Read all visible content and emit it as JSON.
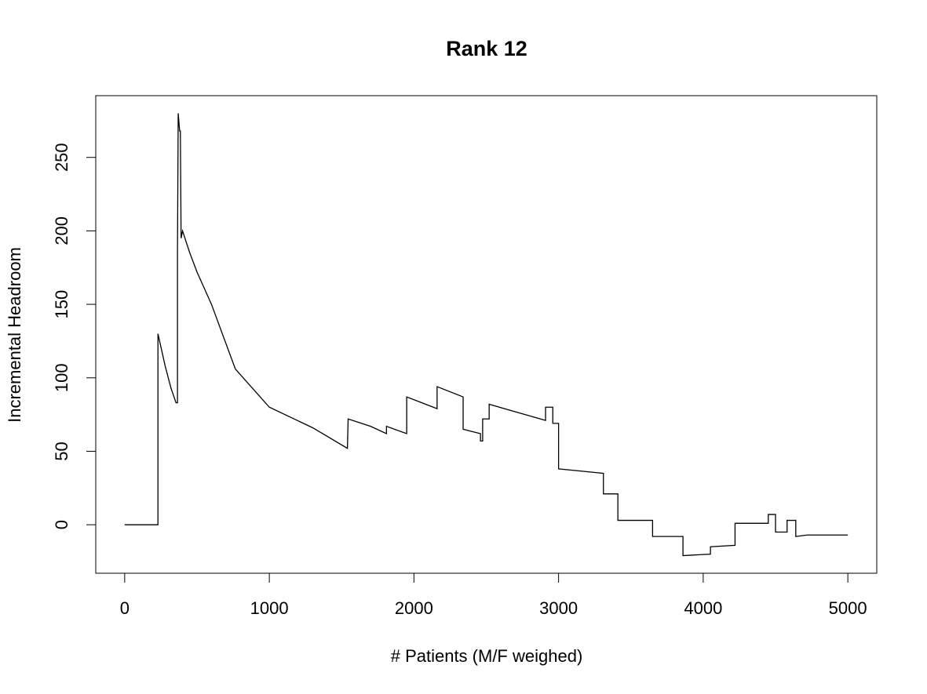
{
  "chart_data": {
    "type": "line",
    "title": "Rank 12",
    "x_label": "# Patients (M/F weighed)",
    "y_label": "Incremental Headroom",
    "color": "#000000",
    "xlim": [
      -200,
      5200
    ],
    "ylim": [
      -33,
      292
    ],
    "xticks": [
      0,
      1000,
      2000,
      3000,
      4000,
      5000
    ],
    "yticks": [
      0,
      50,
      100,
      150,
      200,
      250
    ],
    "x": [
      0,
      230,
      230,
      280,
      320,
      355,
      365,
      365,
      370,
      380,
      385,
      390,
      400,
      450,
      500,
      600,
      765,
      1000,
      1300,
      1540,
      1545,
      1700,
      1810,
      1810,
      1950,
      1950,
      2160,
      2160,
      2340,
      2340,
      2460,
      2460,
      2475,
      2475,
      2520,
      2520,
      2910,
      2910,
      2960,
      2960,
      3000,
      3000,
      3310,
      3310,
      3410,
      3410,
      3650,
      3650,
      3860,
      3860,
      4050,
      4050,
      4220,
      4220,
      4450,
      4450,
      4500,
      4500,
      4580,
      4580,
      4640,
      4640,
      4720,
      5000
    ],
    "values": [
      0,
      0,
      130,
      108,
      93,
      83,
      83,
      185,
      280,
      268,
      268,
      195,
      200,
      185,
      172,
      150,
      106,
      80,
      66,
      52,
      72,
      67,
      62,
      67,
      62,
      87,
      79,
      94,
      87,
      65,
      62,
      57,
      57,
      72,
      72,
      82,
      71,
      80,
      80,
      69,
      69,
      38,
      35,
      21,
      21,
      3,
      3,
      -8,
      -8,
      -21,
      -20,
      -15,
      -14,
      1,
      1,
      7,
      7,
      -5,
      -5,
      3,
      3,
      -8,
      -7,
      -7
    ]
  }
}
